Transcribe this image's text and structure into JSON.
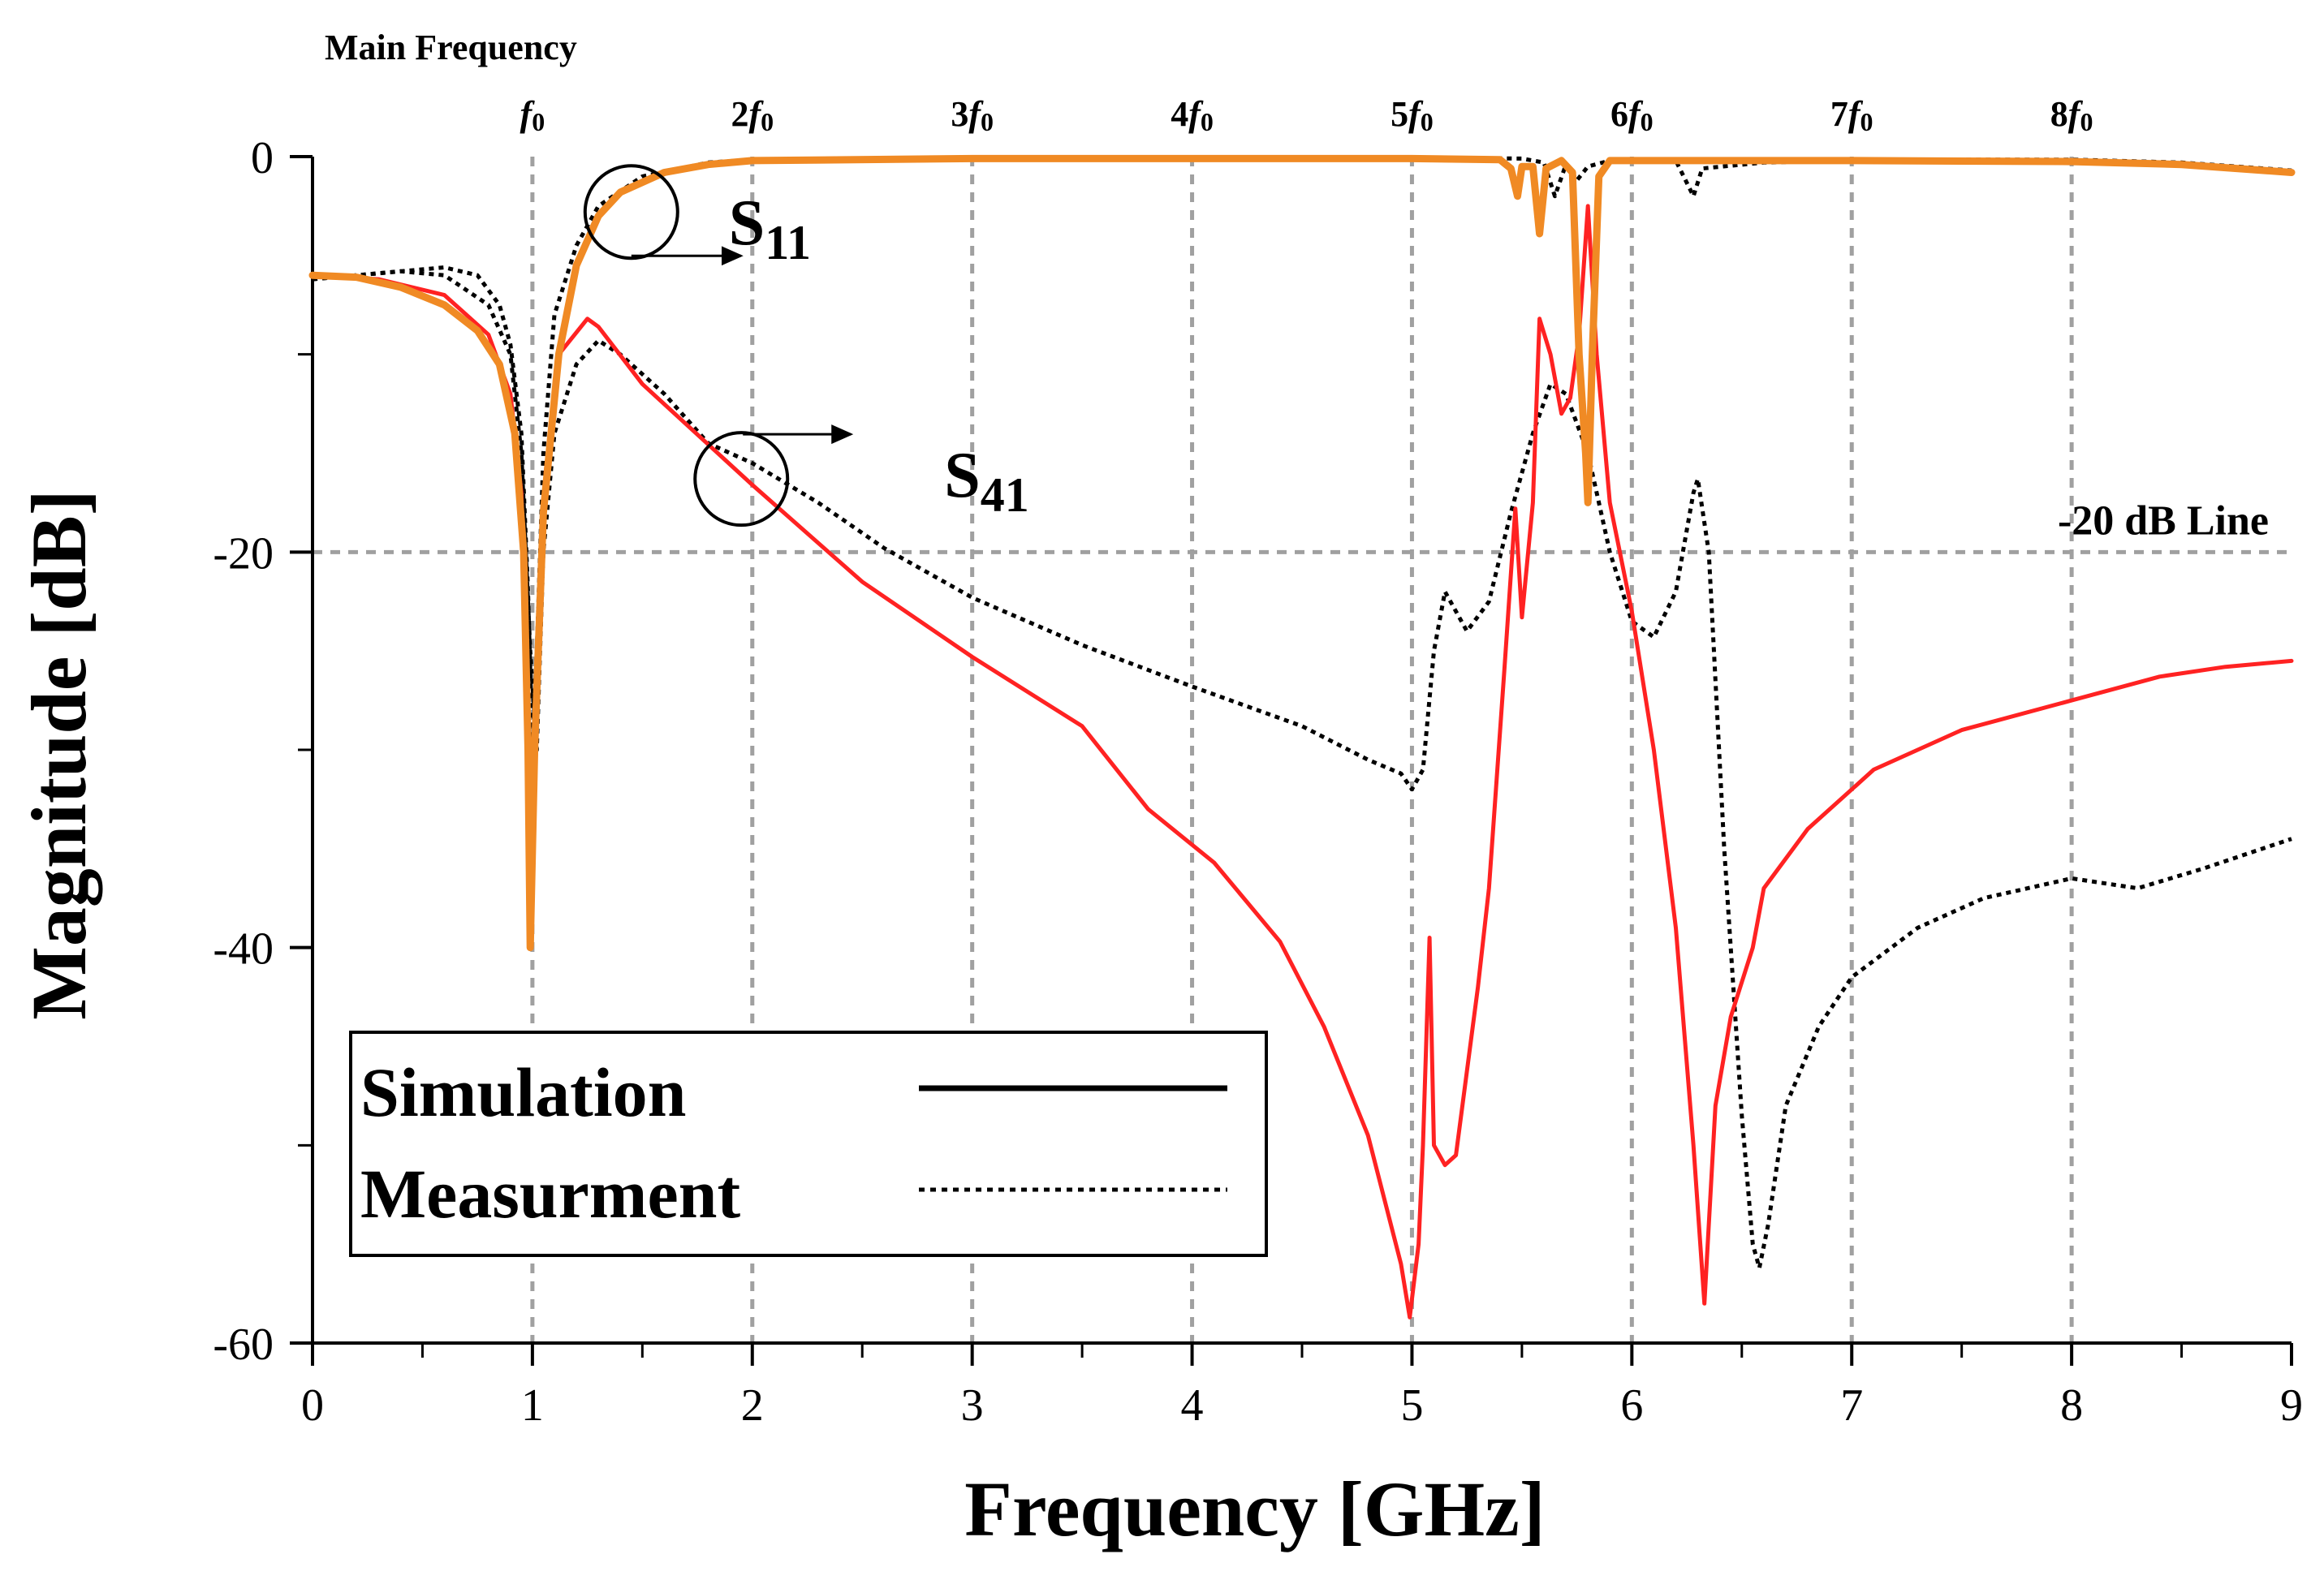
{
  "chart_data": {
    "type": "line",
    "xlabel": "Frequency [GHz]",
    "ylabel": "Magnitude [dB]",
    "xlim": [
      0,
      9
    ],
    "ylim": [
      -60,
      0
    ],
    "x_ticks": [
      "0",
      "1",
      "2",
      "3",
      "4",
      "5",
      "6",
      "7",
      "8",
      "9"
    ],
    "y_ticks": [
      "0",
      "-20",
      "-40",
      "-60"
    ],
    "grid": "dashed vertical at harmonics, dashed horizontal at -20 dB",
    "top_title": "Main Frequency",
    "harmonics": [
      {
        "label": "f₀",
        "x": 1
      },
      {
        "label": "2f₀",
        "x": 2
      },
      {
        "label": "3f₀",
        "x": 3
      },
      {
        "label": "4f₀",
        "x": 4
      },
      {
        "label": "5f₀",
        "x": 5
      },
      {
        "label": "6f₀",
        "x": 6
      },
      {
        "label": "7f₀",
        "x": 7
      },
      {
        "label": "8f₀",
        "x": 8
      }
    ],
    "reference_line": {
      "y": -20,
      "label": "-20 dB Line"
    },
    "annotations": [
      {
        "label_main": "S",
        "label_sub": "11",
        "circle_at": [
          1.45,
          -2.8
        ]
      },
      {
        "label_main": "S",
        "label_sub": "41",
        "circle_at": [
          1.95,
          -16.3
        ]
      }
    ],
    "legend": {
      "placement": "bottom-left",
      "entries": [
        {
          "label": "Simulation",
          "style": "solid"
        },
        {
          "label": "Measurment",
          "style": "dotted"
        }
      ]
    },
    "series": [
      {
        "name": "S11 Simulation",
        "color": "#f08a24",
        "style": "solid",
        "points": [
          [
            0,
            -6
          ],
          [
            0.2,
            -6.1
          ],
          [
            0.4,
            -6.6
          ],
          [
            0.6,
            -7.5
          ],
          [
            0.75,
            -8.8
          ],
          [
            0.85,
            -10.5
          ],
          [
            0.92,
            -14
          ],
          [
            0.96,
            -20
          ],
          [
            0.98,
            -30
          ],
          [
            0.99,
            -40
          ],
          [
            1.01,
            -30
          ],
          [
            1.05,
            -18
          ],
          [
            1.12,
            -10
          ],
          [
            1.2,
            -5.5
          ],
          [
            1.3,
            -3
          ],
          [
            1.4,
            -1.8
          ],
          [
            1.6,
            -0.8
          ],
          [
            1.8,
            -0.4
          ],
          [
            2,
            -0.2
          ],
          [
            3,
            -0.1
          ],
          [
            4,
            -0.1
          ],
          [
            5,
            -0.1
          ],
          [
            5.4,
            -0.15
          ],
          [
            5.45,
            -0.6
          ],
          [
            5.48,
            -2
          ],
          [
            5.5,
            -0.5
          ],
          [
            5.55,
            -0.5
          ],
          [
            5.58,
            -3.9
          ],
          [
            5.61,
            -0.6
          ],
          [
            5.68,
            -0.2
          ],
          [
            5.73,
            -0.8
          ],
          [
            5.76,
            -10
          ],
          [
            5.79,
            -15
          ],
          [
            5.8,
            -17.5
          ],
          [
            5.82,
            -10
          ],
          [
            5.85,
            -1
          ],
          [
            5.9,
            -0.2
          ],
          [
            6.5,
            -0.2
          ],
          [
            7,
            -0.2
          ],
          [
            8,
            -0.25
          ],
          [
            8.5,
            -0.4
          ],
          [
            9,
            -0.8
          ]
        ]
      },
      {
        "name": "S41 Simulation",
        "color": "#ff2222",
        "style": "solid",
        "points": [
          [
            0,
            -6
          ],
          [
            0.3,
            -6.2
          ],
          [
            0.6,
            -7
          ],
          [
            0.8,
            -9
          ],
          [
            0.9,
            -12
          ],
          [
            0.95,
            -17
          ],
          [
            0.98,
            -28
          ],
          [
            0.99,
            -40
          ],
          [
            1.02,
            -28
          ],
          [
            1.06,
            -16
          ],
          [
            1.12,
            -10
          ],
          [
            1.25,
            -8.2
          ],
          [
            1.3,
            -8.6
          ],
          [
            1.5,
            -11.5
          ],
          [
            2,
            -16.6
          ],
          [
            2.5,
            -21.5
          ],
          [
            3,
            -25.3
          ],
          [
            3.5,
            -28.8
          ],
          [
            3.8,
            -33
          ],
          [
            4.1,
            -35.7
          ],
          [
            4.4,
            -39.7
          ],
          [
            4.6,
            -44
          ],
          [
            4.8,
            -49.5
          ],
          [
            4.95,
            -56
          ],
          [
            4.99,
            -58.7
          ],
          [
            5.03,
            -55
          ],
          [
            5.05,
            -50
          ],
          [
            5.08,
            -39.5
          ],
          [
            5.1,
            -50
          ],
          [
            5.15,
            -51
          ],
          [
            5.2,
            -50.5
          ],
          [
            5.3,
            -42
          ],
          [
            5.35,
            -37
          ],
          [
            5.42,
            -26
          ],
          [
            5.47,
            -17.8
          ],
          [
            5.5,
            -23.3
          ],
          [
            5.55,
            -17.5
          ],
          [
            5.58,
            -8.2
          ],
          [
            5.63,
            -10
          ],
          [
            5.68,
            -13
          ],
          [
            5.72,
            -12.2
          ],
          [
            5.76,
            -9
          ],
          [
            5.8,
            -2.5
          ],
          [
            5.84,
            -10
          ],
          [
            5.9,
            -17.5
          ],
          [
            6,
            -23
          ],
          [
            6.1,
            -30
          ],
          [
            6.2,
            -39
          ],
          [
            6.28,
            -50
          ],
          [
            6.33,
            -58
          ],
          [
            6.38,
            -48
          ],
          [
            6.45,
            -43.5
          ],
          [
            6.55,
            -40
          ],
          [
            6.6,
            -37
          ],
          [
            6.8,
            -34
          ],
          [
            7.1,
            -31
          ],
          [
            7.5,
            -29
          ],
          [
            8,
            -27.5
          ],
          [
            8.4,
            -26.3
          ],
          [
            8.7,
            -25.8
          ],
          [
            9,
            -25.5
          ]
        ]
      },
      {
        "name": "S11 Measurement",
        "color": "#000000",
        "style": "dotted",
        "points": [
          [
            0,
            -6.2
          ],
          [
            0.3,
            -5.9
          ],
          [
            0.6,
            -5.6
          ],
          [
            0.75,
            -6
          ],
          [
            0.85,
            -7.5
          ],
          [
            0.9,
            -9.5
          ],
          [
            0.95,
            -14
          ],
          [
            0.98,
            -22
          ],
          [
            1,
            -30
          ],
          [
            1.02,
            -25
          ],
          [
            1.05,
            -15
          ],
          [
            1.1,
            -8
          ],
          [
            1.2,
            -4.5
          ],
          [
            1.3,
            -2.5
          ],
          [
            1.5,
            -1
          ],
          [
            1.8,
            -0.3
          ],
          [
            2,
            -0.15
          ],
          [
            3,
            -0.05
          ],
          [
            4,
            -0.1
          ],
          [
            5,
            -0.05
          ],
          [
            5.5,
            -0.1
          ],
          [
            5.6,
            -0.3
          ],
          [
            5.65,
            -2
          ],
          [
            5.7,
            -0.4
          ],
          [
            5.75,
            -1.2
          ],
          [
            5.8,
            -0.5
          ],
          [
            5.9,
            -0.2
          ],
          [
            6.2,
            -0.2
          ],
          [
            6.28,
            -2
          ],
          [
            6.32,
            -0.6
          ],
          [
            6.6,
            -0.3
          ],
          [
            7,
            -0.2
          ],
          [
            7.5,
            -0.15
          ],
          [
            8,
            -0.15
          ],
          [
            8.5,
            -0.3
          ],
          [
            9,
            -0.7
          ]
        ]
      },
      {
        "name": "S41 Measurement",
        "color": "#000000",
        "style": "dotted",
        "points": [
          [
            0,
            -6.2
          ],
          [
            0.2,
            -6
          ],
          [
            0.4,
            -5.8
          ],
          [
            0.6,
            -6
          ],
          [
            0.8,
            -7.5
          ],
          [
            0.9,
            -10
          ],
          [
            0.95,
            -15
          ],
          [
            0.99,
            -25
          ],
          [
            1.02,
            -30
          ],
          [
            1.05,
            -20
          ],
          [
            1.1,
            -14
          ],
          [
            1.2,
            -10.5
          ],
          [
            1.3,
            -9.3
          ],
          [
            1.4,
            -10
          ],
          [
            1.6,
            -12
          ],
          [
            1.8,
            -14.5
          ],
          [
            2,
            -15.5
          ],
          [
            2.3,
            -17.5
          ],
          [
            2.6,
            -19.8
          ],
          [
            3,
            -22.3
          ],
          [
            3.5,
            -24.7
          ],
          [
            4,
            -26.8
          ],
          [
            4.5,
            -28.8
          ],
          [
            4.8,
            -30.5
          ],
          [
            4.95,
            -31.2
          ],
          [
            5,
            -32
          ],
          [
            5.05,
            -31
          ],
          [
            5.1,
            -25
          ],
          [
            5.15,
            -22
          ],
          [
            5.25,
            -24
          ],
          [
            5.35,
            -22.5
          ],
          [
            5.45,
            -18
          ],
          [
            5.55,
            -14
          ],
          [
            5.63,
            -11.5
          ],
          [
            5.7,
            -12
          ],
          [
            5.8,
            -15
          ],
          [
            5.9,
            -20
          ],
          [
            6,
            -23.5
          ],
          [
            6.1,
            -24.3
          ],
          [
            6.2,
            -22
          ],
          [
            6.28,
            -17
          ],
          [
            6.3,
            -16.3
          ],
          [
            6.35,
            -20
          ],
          [
            6.42,
            -35
          ],
          [
            6.5,
            -48.5
          ],
          [
            6.55,
            -55
          ],
          [
            6.58,
            -56.2
          ],
          [
            6.62,
            -54
          ],
          [
            6.7,
            -48
          ],
          [
            6.85,
            -44
          ],
          [
            7,
            -41.5
          ],
          [
            7.3,
            -39
          ],
          [
            7.6,
            -37.5
          ],
          [
            8,
            -36.5
          ],
          [
            8.3,
            -37
          ],
          [
            8.6,
            -36
          ],
          [
            9,
            -34.5
          ]
        ]
      }
    ]
  }
}
